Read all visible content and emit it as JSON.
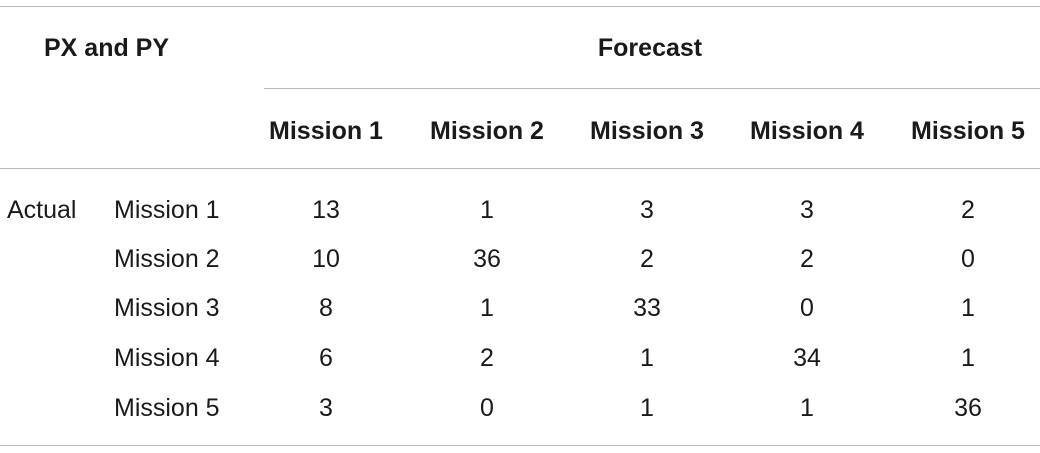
{
  "table": {
    "corner_label": "PX and PY",
    "group_label": "Forecast",
    "row_group_label": "Actual",
    "columns": [
      "Mission 1",
      "Mission 2",
      "Mission 3",
      "Mission 4",
      "Mission 5"
    ],
    "rows": [
      {
        "label": "Mission 1",
        "values": [
          "13",
          "1",
          "3",
          "3",
          "2"
        ]
      },
      {
        "label": "Mission 2",
        "values": [
          "10",
          "36",
          "2",
          "2",
          "0"
        ]
      },
      {
        "label": "Mission 3",
        "values": [
          "8",
          "1",
          "33",
          "0",
          "1"
        ]
      },
      {
        "label": "Mission 4",
        "values": [
          "6",
          "2",
          "1",
          "34",
          "1"
        ]
      },
      {
        "label": "Mission 5",
        "values": [
          "3",
          "0",
          "1",
          "1",
          "36"
        ]
      }
    ]
  }
}
